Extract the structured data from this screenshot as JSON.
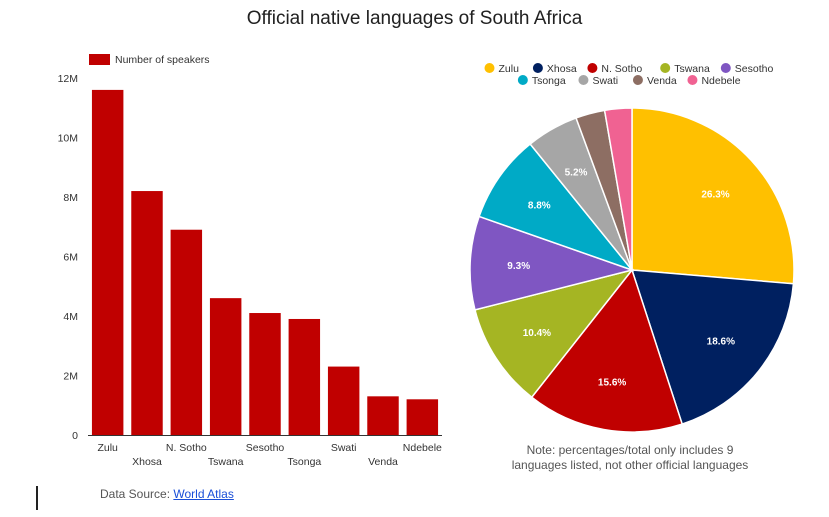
{
  "title": "Official native languages of South Africa",
  "colors": {
    "bar": "#c00000",
    "pie": [
      "#ffc000",
      "#002060",
      "#c00000",
      "#a5b523",
      "#7f56c2",
      "#00aac6",
      "#a6a6a6",
      "#8d6e63",
      "#f06292"
    ]
  },
  "note_line1": "Note: percentages/total only includes 9",
  "note_line2": "languages listed, not other official languages",
  "source": {
    "prefix": "Data Source: ",
    "link_text": "World Atlas"
  },
  "chart_data": [
    {
      "type": "bar",
      "legend": "Number of speakers",
      "categories": [
        "Zulu",
        "Xhosa",
        "N. Sotho",
        "Tswana",
        "Sesotho",
        "Tsonga",
        "Swati",
        "Venda",
        "Ndebele"
      ],
      "values": [
        11600000,
        8200000,
        6900000,
        4600000,
        4100000,
        3900000,
        2300000,
        1300000,
        1200000
      ],
      "y_ticks": [
        "0",
        "2M",
        "4M",
        "6M",
        "8M",
        "10M",
        "12M"
      ],
      "ylim": [
        0,
        12000000
      ],
      "legend_position": "top-left"
    },
    {
      "type": "pie",
      "labels": [
        "Zulu",
        "Xhosa",
        "N. Sotho",
        "Tswana",
        "Sesotho",
        "Tsonga",
        "Swati",
        "Venda",
        "Ndebele"
      ],
      "values": [
        26.3,
        18.6,
        15.6,
        10.4,
        9.3,
        8.8,
        5.2,
        2.9,
        2.7
      ],
      "slice_labels": [
        "26.3%",
        "18.6%",
        "15.6%",
        "10.4%",
        "9.3%",
        "8.8%",
        "5.2%",
        "",
        ""
      ],
      "legend_position": "top"
    }
  ]
}
